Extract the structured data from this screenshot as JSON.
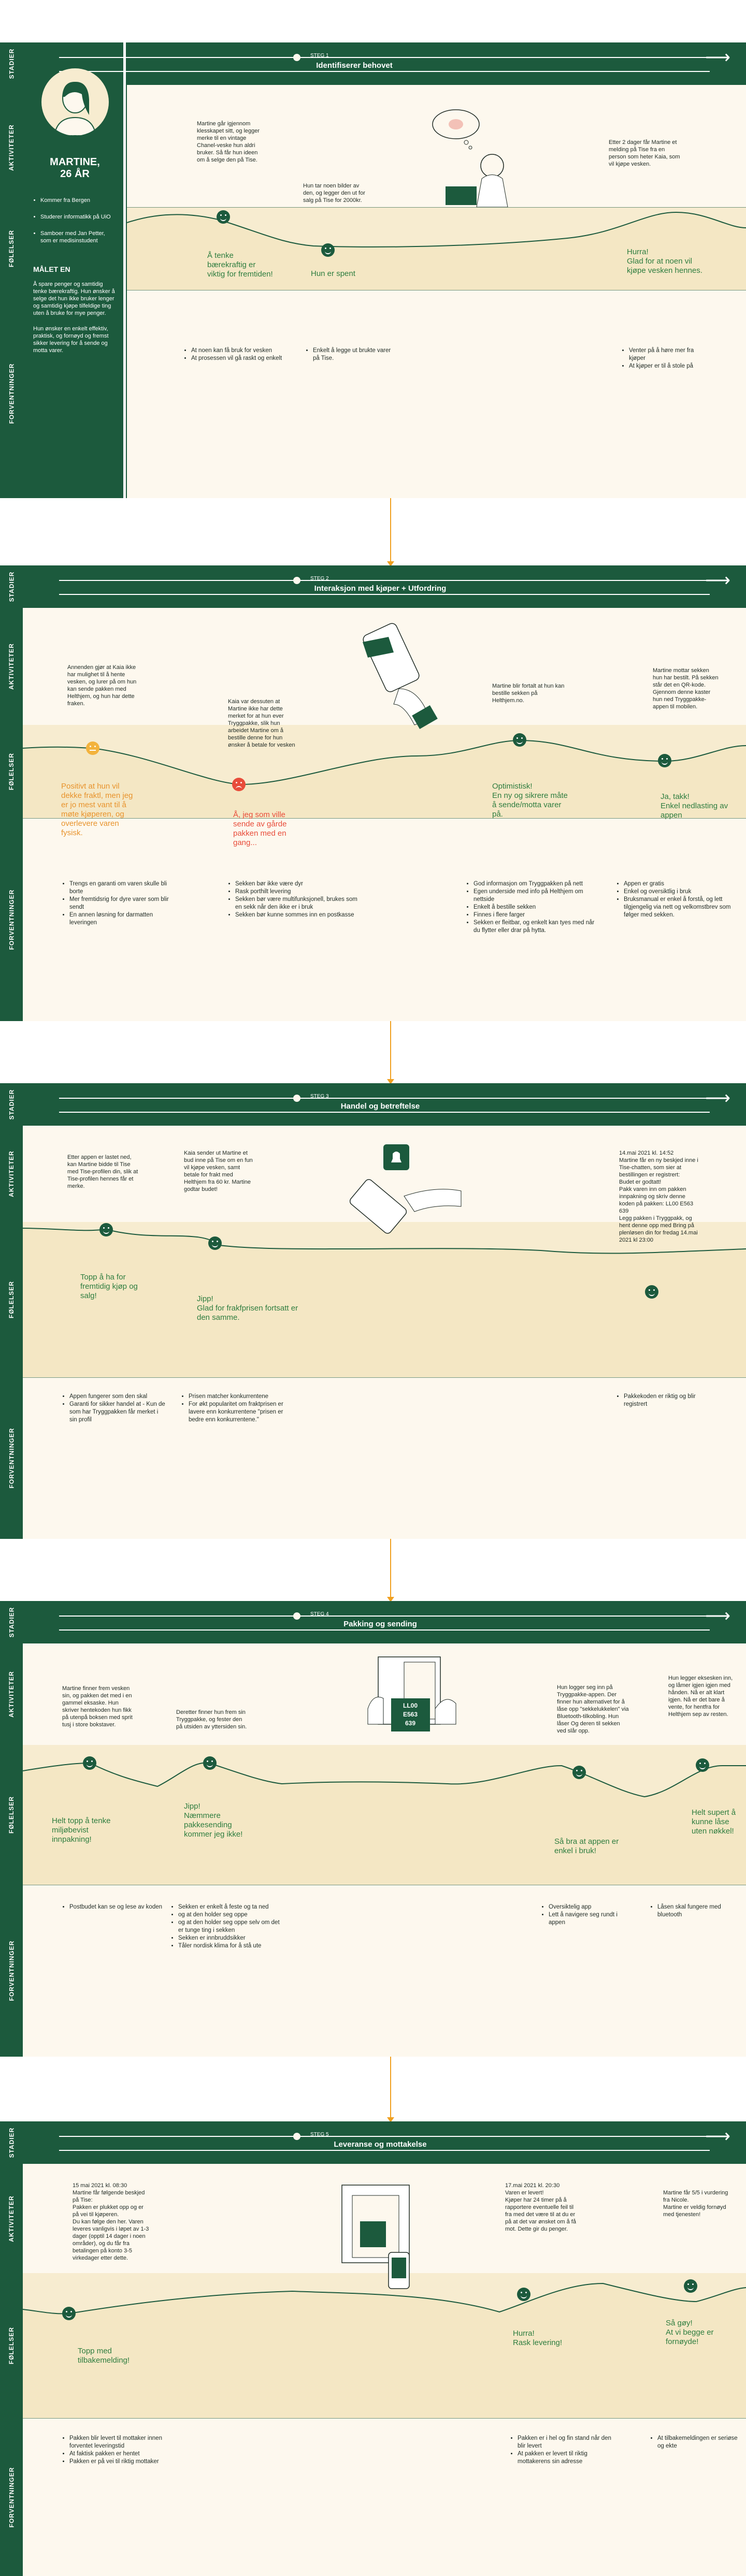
{
  "labels": {
    "stager": "STADIER",
    "aktiviteter": "AKTIVITETER",
    "folelser": "FØLELSER",
    "forventninger": "FORVENTNINGER"
  },
  "persona": {
    "name": "MARTINE,\n26 ÅR",
    "bullets": [
      "Kommer fra Bergen",
      "Studerer informatikk på UiO",
      "Samboer med Jan Petter, som er medisinstudent"
    ],
    "goal_heading": "MÅLET EN",
    "goal_text_1": "Å spare penger og samtidig tenke bærekraftig. Hun ønsker å selge det hun ikke bruker lenger og samtidig kjøpe tilfeldige ting uten å bruke for mye penger.",
    "goal_text_2": "Hun ønsker en enkelt effektiv, praktisk, og fornøyd og fremst sikker levering for å sende og motta varer."
  },
  "stages": [
    {
      "step": "STEG 1",
      "title": "Identifiserer behovet",
      "activities": [
        "Martine går igjennom klesskapet sitt, og legger merke til en vintage Chanel-veske hun aldri bruker. Så får hun ideen om å selge den på Tise.",
        "Hun tar noen bilder av den, og legger den ut for salg på Tise for 2000kr.",
        "Etter 2 dager får Martine et melding på Tise fra en person som heter Kaia, som vil kjøpe vesken."
      ],
      "feelings": [
        "Å tenke bærekraftig er viktig for fremtiden!",
        "Hun er spent",
        "Hurra!\nGlad for at noen vil kjøpe vesken hennes."
      ],
      "expectations": [
        [
          "At noen kan få bruk for vesken",
          "At prosessen vil gå raskt og enkelt"
        ],
        [
          "Enkelt å legge ut brukte varer på Tise."
        ],
        [
          "Venter på å høre mer fra kjøper",
          "At kjøper er til å stole på"
        ]
      ]
    },
    {
      "step": "STEG 2",
      "title": "Interaksjon med kjøper + Utfordring",
      "activities": [
        "Annenden gjør at Kaia ikke har mulighet til å hente vesken, og lurer på om hun kan sende pakken med Helthjem, og hun har dette fraken.",
        "Kaia var dessuten at Martine ikke har dette merket for at hun ever Tryggpakke, slik hun arbeidet Martine om å bestille denne for hun ønsker å betale for vesken",
        "Martine blir fortalt at hun kan bestille sekken på Helthjem.no.",
        "Martine mottar sekken hun har bestilt. På sekken står det en QR-kode. Gjennom denne kaster hun ned Tryggpakke-appen til mobilen."
      ],
      "feelings": [
        "Positivt at hun vil dekke fraktl, men jeg er jo mest vant til å møte kjøperen, og overlevere varen fysisk.",
        "Å, jeg som ville sende av gårde pakken med en gang...",
        "Optimistisk!\nEn ny og sikrere måte å sende/motta varer på.",
        "Ja, takk!\nEnkel nedlasting av appen"
      ],
      "expectations": [
        [
          "Trengs en garanti om varen skulle bli borte",
          "Mer fremtidsrig for dyre varer som blir sendt",
          "En annen løsning for darmatten leveringen"
        ],
        [
          "Sekken bør ikke være dyr",
          "Rask porthilt levering",
          "Sekken bør være multifunksjonell, brukes som en sekk når den ikke er i bruk",
          "Sekken bør kunne sommes inn en postkasse"
        ],
        [
          "God informasjon om Tryggpakken på nett",
          "Egen underside med info på Helthjem om nettside",
          "Enkelt å bestille sekken",
          "Finnes i flere farger",
          "Sekken er fleitbar, og enkelt kan tyes med når du flytter eller drar på hytta."
        ],
        [
          "Appen er gratis",
          "Enkel og oversiktlig i bruk",
          "Bruksmanual er enkel å forstå, og lett tilgjengelig via nett og velkomstbrev som følger med sekken."
        ]
      ]
    },
    {
      "step": "STEG 3",
      "title": "Handel og betreftelse",
      "activities": [
        "Etter appen er lastet ned, kan Martine bidde til Tise med Tise-profilen din, slik at Tise-profilen hennes får et merke.",
        "Kaia sender ut Martine et bud inne på Tise om en fun vil kjøpe vesken, samt betale for frakt med Helthjem fra 60 kr. Martine godtar budet!",
        "14.mai 2021 kl. 14:52\nMartine får en ny beskjed inne i Tise-chatten, som sier at bestillingen er registrert:\nBudet er godtatt!\nPakk varen inn om pakken innpakning og skriv denne koden på pakken: LL00 E563 639\nLegg pakken i Tryggpakk, og hent denne opp med Bring på plenløsen din for fredag 14.mai 2021 kl 23:00"
      ],
      "feelings": [
        "Topp å ha for fremtidig kjøp og salg!",
        "Jipp!\nGlad for frakfprisen fortsatt er den samme.",
        ""
      ],
      "expectations": [
        [
          "Appen fungerer som den skal",
          "Garanti for sikker handel at - Kun de som har Tryggpakken får merket i sin profil"
        ],
        [
          "Prisen matcher konkurrentene",
          "For økt popularitet om fraktprisen er lavere enn konkurrentene \"prisen er bedre enn konkurrentene.\""
        ],
        [
          "Pakkekoden er riktig og blir registrert"
        ]
      ]
    },
    {
      "step": "STEG 4",
      "title": "Pakking og sending",
      "activities": [
        "Martine finner frem vesken sin, og pakken det med i en gammel eksaske. Hun skriver hentekoden hun fikk på utenpå boksen med sprit tusj i store bokstaver.",
        "Deretter finner hun frem sin Tryggpakke, og fester den på utsiden av yttersiden sin.",
        "Hun logger seg inn på Tryggpakke-appen. Der finner hun alternativet for å låse opp \"sekkelukkelen\" via Bluetooth-tilkobling. Hun låser Og deren til sekken ved slår opp.",
        "Hun legger eksesken inn, og låmer igjen igjen med hånden. Nå er alt klart igjen. Nå er det bare å vente, for hentfra for Helthjem sep av resten."
      ],
      "feelings": [
        "Helt topp å tenke miljøbevist innpakning!",
        "Jipp!\nNæmmere pakkesending kommer jeg ikke!",
        "Så bra at appen er enkel i bruk!",
        "Helt supert å kunne låse uten nøkkel!"
      ],
      "expectations": [
        [
          "Postbudet kan se og lese av koden"
        ],
        [
          "Sekken er enkelt å feste og ta ned",
          "og at den holder seg oppe",
          "og at den holder seg oppe selv om det er tunge ting i sekken",
          "Sekken er innbruddsikker",
          "Tåler nordisk klima for å stå ute"
        ],
        [
          "Oversiktelig app",
          "Lett å navigere seg rundt i appen"
        ],
        [
          "Låsen skal fungere med bluetooth"
        ]
      ]
    },
    {
      "step": "STEG 5",
      "title": "Leveranse og mottakelse",
      "activities": [
        "15 mai 2021 kl. 08:30\nMartine får følgende beskjed på Tise:\nPakken er plukket opp og er på vei til kjøperen.\nDu kan følge den her. Varen leveres vanligvis i løpet av 1-3 dager (opptil 14 dager i noen områder), og du får fra betalingen på konto 3-5 virkedager etter dette.",
        "17.mai 2021 kl. 20:30\nVaren er levert!\nKjøper har 24 timer på å rapportere eventuelle feil til fra med det være til at du er på at det var ønsket om å få mot. Dette gir du penger.",
        "Martine får 5/5 i vurdering fra Nicole.\nMartine er veldig fornøyd med tjenesten!"
      ],
      "feelings": [
        "Topp med tilbakemelding!",
        "Hurra!\nRask levering!",
        "Så gøy!\nAt vi begge er fornøyde!"
      ],
      "expectations": [
        [
          "Pakken blir levert til mottaker innen forventet leveringstid",
          "At faktisk pakken er hentet",
          "Pakken er på vei til riktig mottaker"
        ],
        [
          "Pakken er i hel og fin stand når den blir levert",
          "At pakken er levert til riktig mottakerens sin adresse"
        ],
        [
          "At tilbakemeldingen er seriøse og ekte"
        ]
      ]
    }
  ],
  "illus": {
    "lock_code_1": "LL00",
    "lock_code_2": "E563",
    "lock_code_3": "639"
  },
  "colors": {
    "primary": "#1c5a3d",
    "cream": "#fdf8ee",
    "connector": "#f0a020",
    "positive": "#2e7d3f",
    "warning": "#e8932c",
    "negative": "#e84c3a"
  }
}
